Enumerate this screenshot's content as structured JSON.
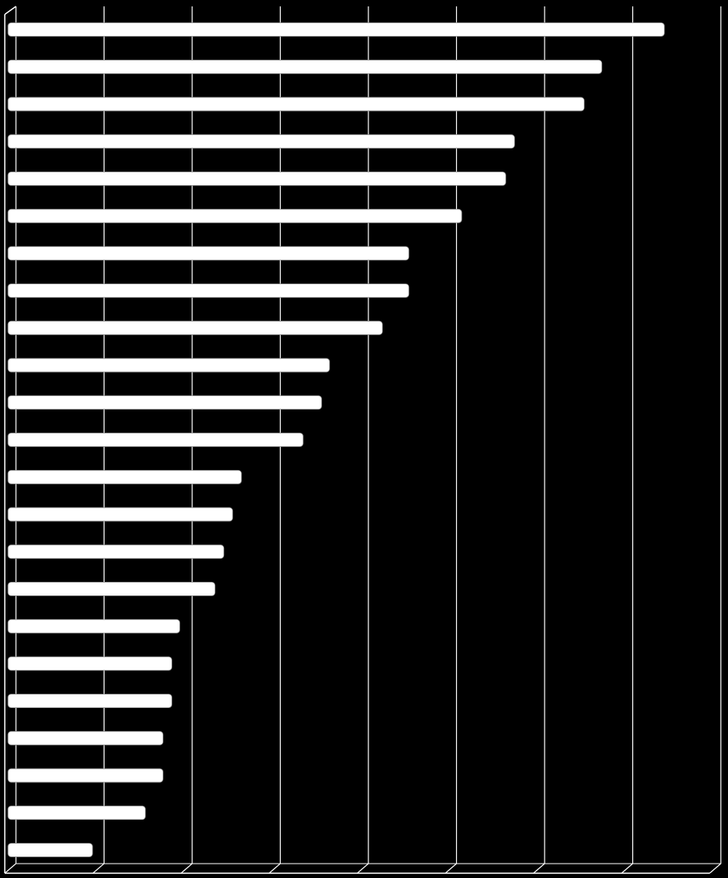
{
  "chart_data": {
    "type": "bar",
    "orientation": "horizontal",
    "categories": [
      null,
      null,
      null,
      null,
      null,
      null,
      null,
      null,
      null,
      null,
      null,
      null,
      null,
      null,
      null,
      null,
      null,
      null,
      null,
      null,
      null,
      null,
      null
    ],
    "values": [
      7.45,
      6.74,
      6.54,
      5.75,
      5.65,
      5.15,
      4.55,
      4.55,
      4.25,
      3.65,
      3.56,
      3.35,
      2.65,
      2.55,
      2.45,
      2.35,
      1.95,
      1.86,
      1.86,
      1.76,
      1.76,
      1.56,
      0.96
    ],
    "color": "#ffffff",
    "background": "#000000",
    "xlim": [
      0,
      8
    ],
    "xticks": [
      0,
      1,
      2,
      3,
      4,
      5,
      6,
      7,
      8
    ],
    "grid": true
  }
}
